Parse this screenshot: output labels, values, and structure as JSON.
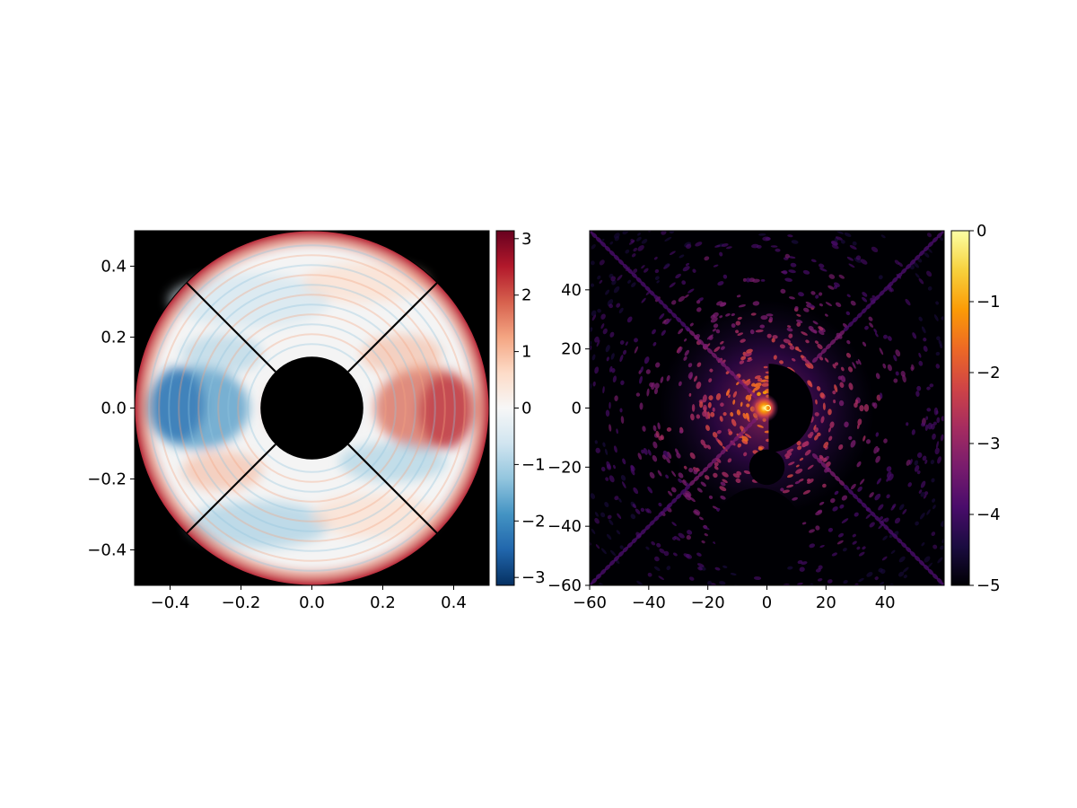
{
  "chart_data": [
    {
      "type": "heatmap",
      "panel": "left",
      "description_free": true,
      "title": "",
      "xlabel": "",
      "ylabel": "",
      "xlim": [
        -0.5,
        0.5
      ],
      "ylim": [
        -0.5,
        0.5
      ],
      "x_ticks": [
        -0.4,
        -0.2,
        0.0,
        0.2,
        0.4
      ],
      "x_tick_labels": [
        "−0.4",
        "−0.2",
        "0.0",
        "0.2",
        "0.4"
      ],
      "y_ticks": [
        -0.4,
        -0.2,
        0.0,
        0.2,
        0.4
      ],
      "y_tick_labels": [
        "−0.4",
        "−0.2",
        "0.0",
        "0.2",
        "0.4"
      ],
      "colormap": "RdBu",
      "colorbar": {
        "range": [
          -3.14,
          3.14
        ],
        "ticks": [
          -3,
          -2,
          -1,
          0,
          1,
          2,
          3
        ],
        "tick_labels": [
          "−3",
          "−2",
          "−1",
          "0",
          "1",
          "2",
          "3"
        ]
      },
      "aperture": {
        "outer_radius": 0.5,
        "inner_radius": 0.145,
        "spider_angles_deg": [
          45,
          135,
          225,
          315
        ]
      },
      "grid": false,
      "background": "#000000"
    },
    {
      "type": "heatmap",
      "panel": "right",
      "title": "",
      "xlabel": "",
      "ylabel": "",
      "xlim": [
        -60,
        60
      ],
      "ylim": [
        -60,
        60
      ],
      "x_ticks": [
        -60,
        -40,
        -20,
        0,
        20,
        40
      ],
      "x_tick_labels": [
        "−60",
        "−40",
        "−20",
        "0",
        "20",
        "40"
      ],
      "y_ticks": [
        -60,
        -40,
        -20,
        0,
        20,
        40
      ],
      "y_tick_labels": [
        "−60",
        "−40",
        "−20",
        "0",
        "20",
        "40"
      ],
      "colormap": "inferno",
      "colorbar": {
        "range": [
          -5,
          0
        ],
        "ticks": [
          -5,
          -4,
          -3,
          -2,
          -1,
          0
        ],
        "tick_labels": [
          "−5",
          "−4",
          "−3",
          "−2",
          "−1",
          "0"
        ]
      },
      "grid": false,
      "background": "#000000"
    }
  ],
  "colors": {
    "rdbu_stops": [
      "#67001f",
      "#b2182b",
      "#d6604d",
      "#f4a582",
      "#fddbc7",
      "#f7f7f7",
      "#d1e5f0",
      "#92c5de",
      "#4393c3",
      "#2166ac",
      "#053061"
    ],
    "inferno_stops": [
      "#000004",
      "#1b0c41",
      "#4a0c6b",
      "#781c6d",
      "#a52c60",
      "#cf4446",
      "#ed6925",
      "#fb9b06",
      "#f7d13d",
      "#fcffa4"
    ]
  }
}
